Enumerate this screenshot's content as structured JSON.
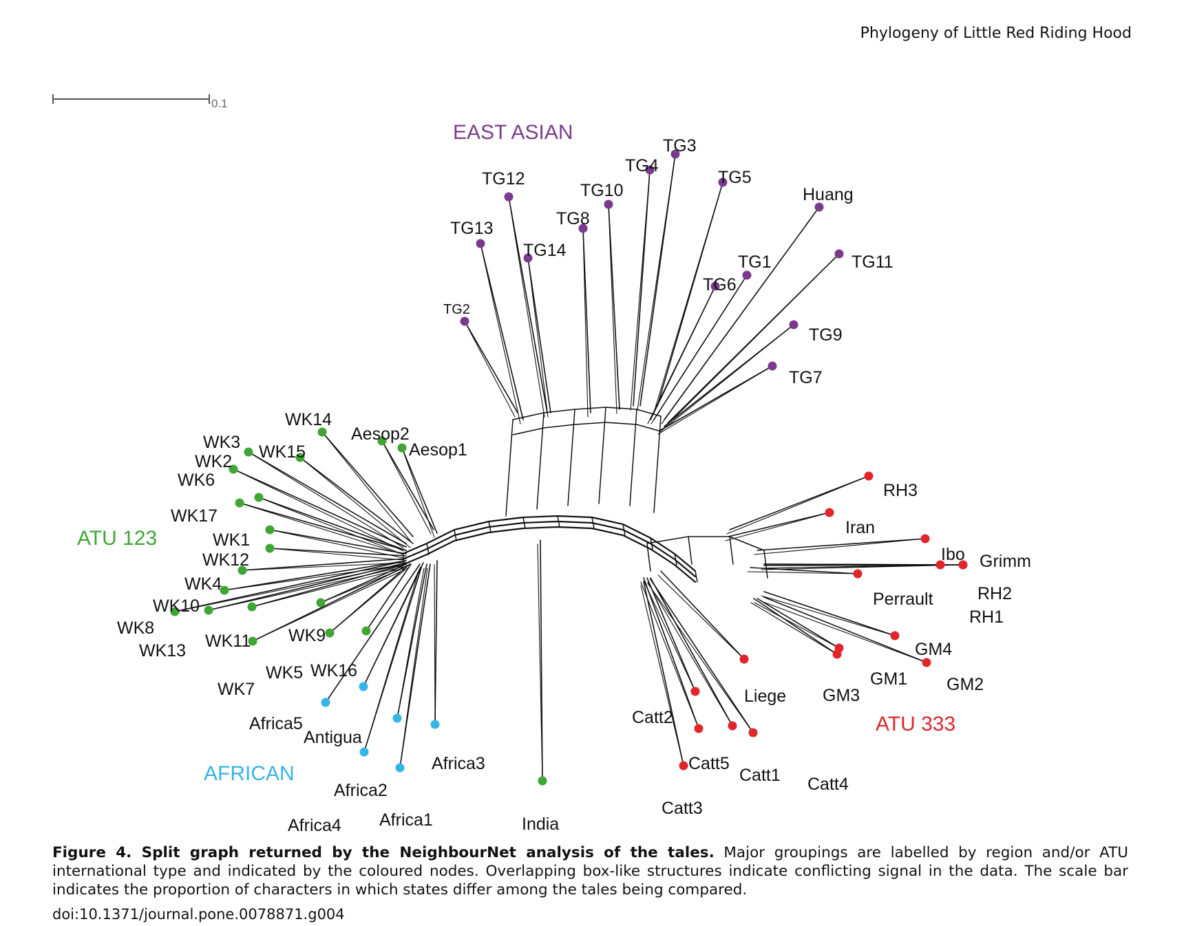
{
  "running_head": "Phylogeny of Little Red Riding Hood",
  "scale_bar_label": "0.1",
  "colors": {
    "atu123": "#3fa535",
    "east_asian": "#7a3b8c",
    "african": "#36b4e5",
    "atu333": "#e0252b",
    "india": "#3fa535"
  },
  "groups": {
    "east_asian": "EAST ASIAN",
    "atu123": "ATU 123",
    "african": "AFRICAN",
    "atu333": "ATU 333"
  },
  "taxa": [
    {
      "id": "TG3",
      "label": "TG3",
      "group": "east_asian"
    },
    {
      "id": "TG4",
      "label": "TG4",
      "group": "east_asian"
    },
    {
      "id": "TG5",
      "label": "TG5",
      "group": "east_asian"
    },
    {
      "id": "TG12",
      "label": "TG12",
      "group": "east_asian"
    },
    {
      "id": "TG10",
      "label": "TG10",
      "group": "east_asian"
    },
    {
      "id": "Huang",
      "label": "Huang",
      "group": "east_asian"
    },
    {
      "id": "TG8",
      "label": "TG8",
      "group": "east_asian"
    },
    {
      "id": "TG13",
      "label": "TG13",
      "group": "east_asian"
    },
    {
      "id": "TG14",
      "label": "TG14",
      "group": "east_asian"
    },
    {
      "id": "TG1",
      "label": "TG1",
      "group": "east_asian"
    },
    {
      "id": "TG11",
      "label": "TG11",
      "group": "east_asian"
    },
    {
      "id": "TG6",
      "label": "TG6",
      "group": "east_asian"
    },
    {
      "id": "TG2",
      "label": "TG2",
      "group": "east_asian"
    },
    {
      "id": "TG9",
      "label": "TG9",
      "group": "east_asian"
    },
    {
      "id": "TG7",
      "label": "TG7",
      "group": "east_asian"
    },
    {
      "id": "WK14",
      "label": "WK14",
      "group": "atu123"
    },
    {
      "id": "Aesop2",
      "label": "Aesop2",
      "group": "atu123"
    },
    {
      "id": "Aesop1",
      "label": "Aesop1",
      "group": "atu123"
    },
    {
      "id": "WK3",
      "label": "WK3",
      "group": "atu123"
    },
    {
      "id": "WK15",
      "label": "WK15",
      "group": "atu123"
    },
    {
      "id": "WK2",
      "label": "WK2",
      "group": "atu123"
    },
    {
      "id": "WK6",
      "label": "WK6",
      "group": "atu123"
    },
    {
      "id": "WK17",
      "label": "WK17",
      "group": "atu123"
    },
    {
      "id": "WK1",
      "label": "WK1",
      "group": "atu123"
    },
    {
      "id": "WK12",
      "label": "WK12",
      "group": "atu123"
    },
    {
      "id": "WK4",
      "label": "WK4",
      "group": "atu123"
    },
    {
      "id": "WK10",
      "label": "WK10",
      "group": "atu123"
    },
    {
      "id": "WK8",
      "label": "WK8",
      "group": "atu123"
    },
    {
      "id": "WK13",
      "label": "WK13",
      "group": "atu123"
    },
    {
      "id": "WK11",
      "label": "WK11",
      "group": "atu123"
    },
    {
      "id": "WK9",
      "label": "WK9",
      "group": "atu123"
    },
    {
      "id": "WK5",
      "label": "WK5",
      "group": "atu123"
    },
    {
      "id": "WK16",
      "label": "WK16",
      "group": "atu123"
    },
    {
      "id": "WK7",
      "label": "WK7",
      "group": "atu123"
    },
    {
      "id": "Africa5",
      "label": "Africa5",
      "group": "african"
    },
    {
      "id": "Antigua",
      "label": "Antigua",
      "group": "african"
    },
    {
      "id": "Africa3",
      "label": "Africa3",
      "group": "african"
    },
    {
      "id": "Africa2",
      "label": "Africa2",
      "group": "african"
    },
    {
      "id": "Africa4",
      "label": "Africa4",
      "group": "african"
    },
    {
      "id": "Africa1",
      "label": "Africa1",
      "group": "african"
    },
    {
      "id": "India",
      "label": "India",
      "group": "india"
    },
    {
      "id": "RH3",
      "label": "RH3",
      "group": "atu333"
    },
    {
      "id": "Iran",
      "label": "Iran",
      "group": "atu333"
    },
    {
      "id": "Ibo",
      "label": "Ibo",
      "group": "atu333"
    },
    {
      "id": "Grimm",
      "label": "Grimm",
      "group": "atu333"
    },
    {
      "id": "Perrault",
      "label": "Perrault",
      "group": "atu333"
    },
    {
      "id": "RH2",
      "label": "RH2",
      "group": "atu333"
    },
    {
      "id": "RH1",
      "label": "RH1",
      "group": "atu333"
    },
    {
      "id": "GM4",
      "label": "GM4",
      "group": "atu333"
    },
    {
      "id": "GM1",
      "label": "GM1",
      "group": "atu333"
    },
    {
      "id": "GM2",
      "label": "GM2",
      "group": "atu333"
    },
    {
      "id": "GM3",
      "label": "GM3",
      "group": "atu333"
    },
    {
      "id": "Liege",
      "label": "Liege",
      "group": "atu333"
    },
    {
      "id": "Catt2",
      "label": "Catt2",
      "group": "atu333"
    },
    {
      "id": "Catt5",
      "label": "Catt5",
      "group": "atu333"
    },
    {
      "id": "Catt1",
      "label": "Catt1",
      "group": "atu333"
    },
    {
      "id": "Catt4",
      "label": "Catt4",
      "group": "atu333"
    },
    {
      "id": "Catt3",
      "label": "Catt3",
      "group": "atu333"
    }
  ],
  "caption": {
    "title": "Figure 4. Split graph returned by the NeighbourNet analysis of the tales.",
    "text": " Major groupings are labelled by region and/or ATU international type and indicated by the coloured nodes. Overlapping box-like structures indicate conflicting signal in the data. The scale bar indicates the proportion of characters in which states differ among the tales being compared.",
    "doi": "doi:10.1371/journal.pone.0078871.g004"
  }
}
